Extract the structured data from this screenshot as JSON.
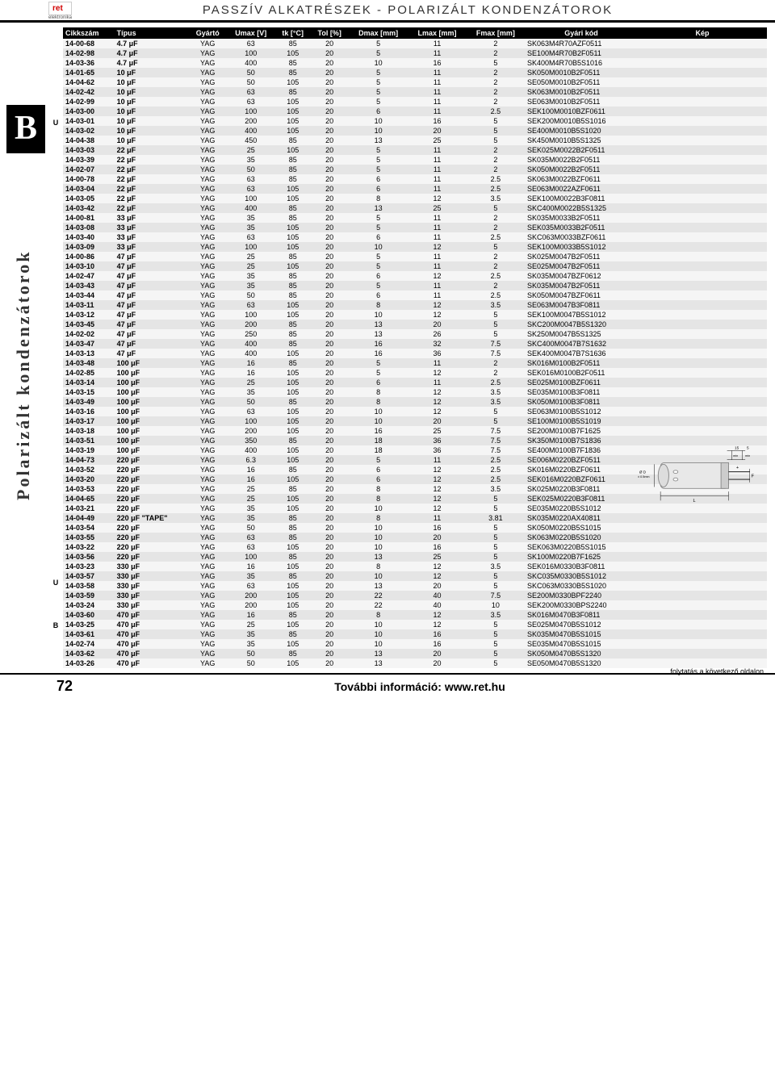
{
  "logo": {
    "brand": "ret",
    "sub": "elektronika"
  },
  "header": "PASSZÍV ALKATRÉSZEK - POLARIZÁLT KONDENZÁTOROK",
  "side_letter": "B",
  "side_text": "Polarizált kondenzátorok",
  "columns": [
    "Cikkszám",
    "Típus",
    "Gyártó",
    "Umax [V]",
    "tk [°C]",
    "Tol [%]",
    "Dmax [mm]",
    "Lmax [mm]",
    "Fmax [mm]",
    "Gyári kód",
    "Kép"
  ],
  "flags": {
    "4": "U",
    "36": "U",
    "39": "B"
  },
  "rows": [
    [
      "14-00-68",
      "4.7 μF",
      "YAG",
      "63",
      "85",
      "20",
      "5",
      "11",
      "2",
      "SK063M4R70AZF0511"
    ],
    [
      "14-02-98",
      "4.7 μF",
      "YAG",
      "100",
      "105",
      "20",
      "5",
      "11",
      "2",
      "SE100M4R70B2F0511"
    ],
    [
      "14-03-36",
      "4.7 μF",
      "YAG",
      "400",
      "85",
      "20",
      "10",
      "16",
      "5",
      "SK400M4R70B5S1016"
    ],
    [
      "14-01-65",
      "10 μF",
      "YAG",
      "50",
      "85",
      "20",
      "5",
      "11",
      "2",
      "SK050M0010B2F0511"
    ],
    [
      "14-04-62",
      "10 μF",
      "YAG",
      "50",
      "105",
      "20",
      "5",
      "11",
      "2",
      "SE050M0010B2F0511"
    ],
    [
      "14-02-42",
      "10 μF",
      "YAG",
      "63",
      "85",
      "20",
      "5",
      "11",
      "2",
      "SK063M0010B2F0511"
    ],
    [
      "14-02-99",
      "10 μF",
      "YAG",
      "63",
      "105",
      "20",
      "5",
      "11",
      "2",
      "SE063M0010B2F0511"
    ],
    [
      "14-03-00",
      "10 μF",
      "YAG",
      "100",
      "105",
      "20",
      "6",
      "11",
      "2.5",
      "SEK100M0010BZF0611"
    ],
    [
      "14-03-01",
      "10 μF",
      "YAG",
      "200",
      "105",
      "20",
      "10",
      "16",
      "5",
      "SEK200M0010B5S1016"
    ],
    [
      "14-03-02",
      "10 μF",
      "YAG",
      "400",
      "105",
      "20",
      "10",
      "20",
      "5",
      "SE400M0010B5S1020"
    ],
    [
      "14-04-38",
      "10 μF",
      "YAG",
      "450",
      "85",
      "20",
      "13",
      "25",
      "5",
      "SK450M0010B5S1325"
    ],
    [
      "14-03-03",
      "22 μF",
      "YAG",
      "25",
      "105",
      "20",
      "5",
      "11",
      "2",
      "SEK025M0022B2F0511"
    ],
    [
      "14-03-39",
      "22 μF",
      "YAG",
      "35",
      "85",
      "20",
      "5",
      "11",
      "2",
      "SK035M0022B2F0511"
    ],
    [
      "14-02-07",
      "22 μF",
      "YAG",
      "50",
      "85",
      "20",
      "5",
      "11",
      "2",
      "SK050M0022B2F0511"
    ],
    [
      "14-00-78",
      "22 μF",
      "YAG",
      "63",
      "85",
      "20",
      "6",
      "11",
      "2.5",
      "SK063M0022BZF0611"
    ],
    [
      "14-03-04",
      "22 μF",
      "YAG",
      "63",
      "105",
      "20",
      "6",
      "11",
      "2.5",
      "SE063M0022AZF0611"
    ],
    [
      "14-03-05",
      "22 μF",
      "YAG",
      "100",
      "105",
      "20",
      "8",
      "12",
      "3.5",
      "SEK100M0022B3F0811"
    ],
    [
      "14-03-42",
      "22 μF",
      "YAG",
      "400",
      "85",
      "20",
      "13",
      "25",
      "5",
      "SKC400M0022B5S1325"
    ],
    [
      "14-00-81",
      "33 μF",
      "YAG",
      "35",
      "85",
      "20",
      "5",
      "11",
      "2",
      "SK035M0033B2F0511"
    ],
    [
      "14-03-08",
      "33 μF",
      "YAG",
      "35",
      "105",
      "20",
      "5",
      "11",
      "2",
      "SEK035M0033B2F0511"
    ],
    [
      "14-03-40",
      "33 μF",
      "YAG",
      "63",
      "105",
      "20",
      "6",
      "11",
      "2.5",
      "SKC063M0033BZF0611"
    ],
    [
      "14-03-09",
      "33 μF",
      "YAG",
      "100",
      "105",
      "20",
      "10",
      "12",
      "5",
      "SEK100M0033B5S1012"
    ],
    [
      "14-00-86",
      "47 μF",
      "YAG",
      "25",
      "85",
      "20",
      "5",
      "11",
      "2",
      "SK025M0047B2F0511"
    ],
    [
      "14-03-10",
      "47 μF",
      "YAG",
      "25",
      "105",
      "20",
      "5",
      "11",
      "2",
      "SE025M0047B2F0511"
    ],
    [
      "14-02-47",
      "47 μF",
      "YAG",
      "35",
      "85",
      "20",
      "6",
      "12",
      "2.5",
      "SK035M0047BZF0612"
    ],
    [
      "14-03-43",
      "47 μF",
      "YAG",
      "35",
      "85",
      "20",
      "5",
      "11",
      "2",
      "SK035M0047B2F0511"
    ],
    [
      "14-03-44",
      "47 μF",
      "YAG",
      "50",
      "85",
      "20",
      "6",
      "11",
      "2.5",
      "SK050M0047BZF0611"
    ],
    [
      "14-03-11",
      "47 μF",
      "YAG",
      "63",
      "105",
      "20",
      "8",
      "12",
      "3.5",
      "SE063M0047B3F0811"
    ],
    [
      "14-03-12",
      "47 μF",
      "YAG",
      "100",
      "105",
      "20",
      "10",
      "12",
      "5",
      "SEK100M0047B5S1012"
    ],
    [
      "14-03-45",
      "47 μF",
      "YAG",
      "200",
      "85",
      "20",
      "13",
      "20",
      "5",
      "SKC200M0047B5S1320"
    ],
    [
      "14-02-02",
      "47 μF",
      "YAG",
      "250",
      "85",
      "20",
      "13",
      "26",
      "5",
      "SK250M0047B5S1325"
    ],
    [
      "14-03-47",
      "47 μF",
      "YAG",
      "400",
      "85",
      "20",
      "16",
      "32",
      "7.5",
      "SKC400M0047B7S1632"
    ],
    [
      "14-03-13",
      "47 μF",
      "YAG",
      "400",
      "105",
      "20",
      "16",
      "36",
      "7.5",
      "SEK400M0047B7S1636"
    ],
    [
      "14-03-48",
      "100 μF",
      "YAG",
      "16",
      "85",
      "20",
      "5",
      "11",
      "2",
      "SK016M0100B2F0511"
    ],
    [
      "14-02-85",
      "100 μF",
      "YAG",
      "16",
      "105",
      "20",
      "5",
      "12",
      "2",
      "SEK016M0100B2F0511"
    ],
    [
      "14-03-14",
      "100 μF",
      "YAG",
      "25",
      "105",
      "20",
      "6",
      "11",
      "2.5",
      "SE025M0100BZF0611"
    ],
    [
      "14-03-15",
      "100 μF",
      "YAG",
      "35",
      "105",
      "20",
      "8",
      "12",
      "3.5",
      "SE035M0100B3F0811"
    ],
    [
      "14-03-49",
      "100 μF",
      "YAG",
      "50",
      "85",
      "20",
      "8",
      "12",
      "3.5",
      "SK050M0100B3F0811"
    ],
    [
      "14-03-16",
      "100 μF",
      "YAG",
      "63",
      "105",
      "20",
      "10",
      "12",
      "5",
      "SE063M0100B5S1012"
    ],
    [
      "14-03-17",
      "100 μF",
      "YAG",
      "100",
      "105",
      "20",
      "10",
      "20",
      "5",
      "SE100M0100B5S1019"
    ],
    [
      "14-03-18",
      "100 μF",
      "YAG",
      "200",
      "105",
      "20",
      "16",
      "25",
      "7.5",
      "SE200M0100B7F1625"
    ],
    [
      "14-03-51",
      "100 μF",
      "YAG",
      "350",
      "85",
      "20",
      "18",
      "36",
      "7.5",
      "SK350M0100B7S1836"
    ],
    [
      "14-03-19",
      "100 μF",
      "YAG",
      "400",
      "105",
      "20",
      "18",
      "36",
      "7.5",
      "SE400M0100B7F1836"
    ],
    [
      "14-04-73",
      "220 μF",
      "YAG",
      "6.3",
      "105",
      "20",
      "5",
      "11",
      "2.5",
      "SE006M0220BZF0511"
    ],
    [
      "14-03-52",
      "220 μF",
      "YAG",
      "16",
      "85",
      "20",
      "6",
      "12",
      "2.5",
      "SK016M0220BZF0611"
    ],
    [
      "14-03-20",
      "220 μF",
      "YAG",
      "16",
      "105",
      "20",
      "6",
      "12",
      "2.5",
      "SEK016M0220BZF0611"
    ],
    [
      "14-03-53",
      "220 μF",
      "YAG",
      "25",
      "85",
      "20",
      "8",
      "12",
      "3.5",
      "SK025M0220B3F0811"
    ],
    [
      "14-04-65",
      "220 μF",
      "YAG",
      "25",
      "105",
      "20",
      "8",
      "12",
      "5",
      "SEK025M0220B3F0811"
    ],
    [
      "14-03-21",
      "220 μF",
      "YAG",
      "35",
      "105",
      "20",
      "10",
      "12",
      "5",
      "SE035M0220B5S1012"
    ],
    [
      "14-04-49",
      "220 μF \"TAPE\"",
      "YAG",
      "35",
      "85",
      "20",
      "8",
      "11",
      "3.81",
      "SK035M0220AX40811"
    ],
    [
      "14-03-54",
      "220 μF",
      "YAG",
      "50",
      "85",
      "20",
      "10",
      "16",
      "5",
      "SK050M0220B5S1015"
    ],
    [
      "14-03-55",
      "220 μF",
      "YAG",
      "63",
      "85",
      "20",
      "10",
      "20",
      "5",
      "SK063M0220B5S1020"
    ],
    [
      "14-03-22",
      "220 μF",
      "YAG",
      "63",
      "105",
      "20",
      "10",
      "16",
      "5",
      "SEK063M0220B5S1015"
    ],
    [
      "14-03-56",
      "220 μF",
      "YAG",
      "100",
      "85",
      "20",
      "13",
      "25",
      "5",
      "SK100M0220B7F1625"
    ],
    [
      "14-03-23",
      "330 μF",
      "YAG",
      "16",
      "105",
      "20",
      "8",
      "12",
      "3.5",
      "SEK016M0330B3F0811"
    ],
    [
      "14-03-57",
      "330 μF",
      "YAG",
      "35",
      "85",
      "20",
      "10",
      "12",
      "5",
      "SKC035M0330B5S1012"
    ],
    [
      "14-03-58",
      "330 μF",
      "YAG",
      "63",
      "105",
      "20",
      "13",
      "20",
      "5",
      "SKC063M0330B5S1020"
    ],
    [
      "14-03-59",
      "330 μF",
      "YAG",
      "200",
      "105",
      "20",
      "22",
      "40",
      "7.5",
      "SE200M0330BPF2240"
    ],
    [
      "14-03-24",
      "330 μF",
      "YAG",
      "200",
      "105",
      "20",
      "22",
      "40",
      "10",
      "SEK200M0330BPS2240"
    ],
    [
      "14-03-60",
      "470 μF",
      "YAG",
      "16",
      "85",
      "20",
      "8",
      "12",
      "3.5",
      "SK016M0470B3F0811"
    ],
    [
      "14-03-25",
      "470 μF",
      "YAG",
      "25",
      "105",
      "20",
      "10",
      "12",
      "5",
      "SE025M0470B5S1012"
    ],
    [
      "14-03-61",
      "470 μF",
      "YAG",
      "35",
      "85",
      "20",
      "10",
      "16",
      "5",
      "SK035M0470B5S1015"
    ],
    [
      "14-02-74",
      "470 μF",
      "YAG",
      "35",
      "105",
      "20",
      "10",
      "16",
      "5",
      "SE035M0470B5S1015"
    ],
    [
      "14-03-62",
      "470 μF",
      "YAG",
      "50",
      "85",
      "20",
      "13",
      "20",
      "5",
      "SK050M0470B5S1320"
    ],
    [
      "14-03-26",
      "470 μF",
      "YAG",
      "50",
      "105",
      "20",
      "13",
      "20",
      "5",
      "SE050M0470B5S1320"
    ]
  ],
  "diagram": {
    "dim1": "15 min",
    "dim2": "5 min",
    "dlabel": "Ø D ± 0.5mm",
    "llabel": "L",
    "flabel": "F"
  },
  "foot_note": "folytatás a következő oldalon",
  "page_num": "72",
  "footer_text": "További információ: www.ret.hu"
}
